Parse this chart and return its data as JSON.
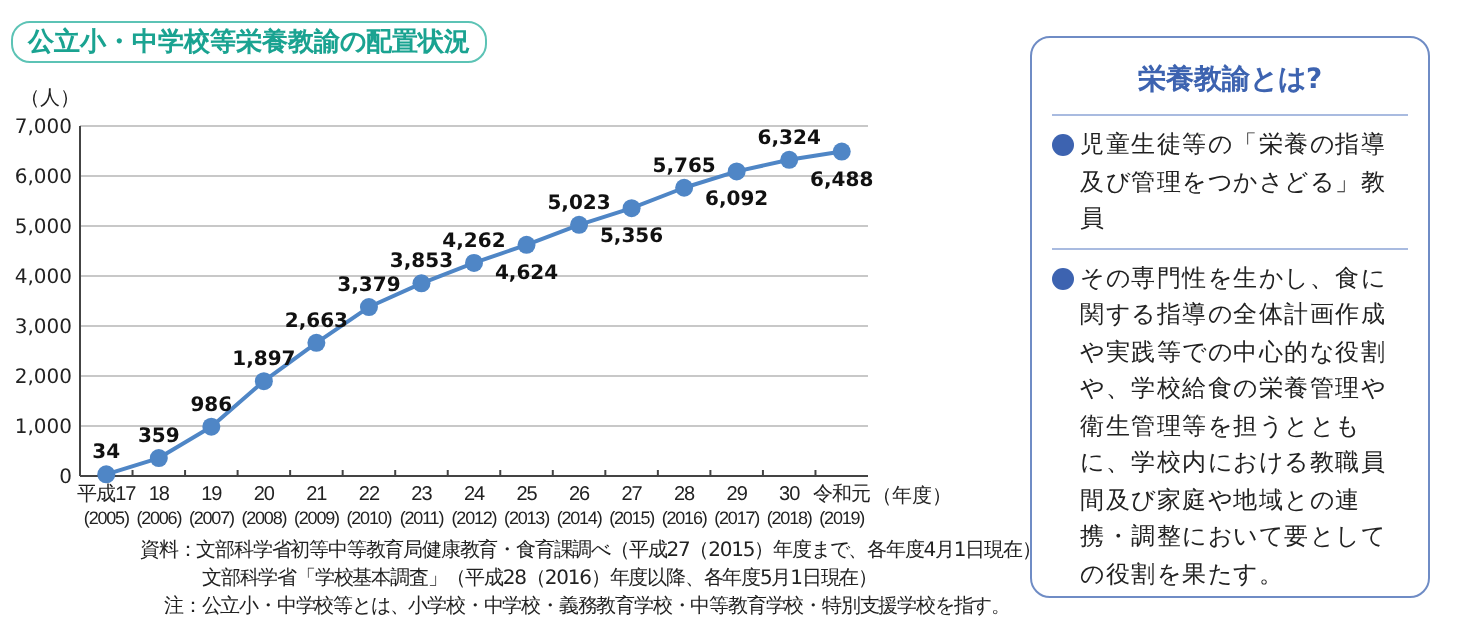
{
  "chart_data": [
    {
      "type": "line",
      "title": "公立小・中学校等栄養教諭の配置状況",
      "ylabel": "（人）",
      "xlabel": "（年度）",
      "categories": [
        "平成17\n(2005)",
        "18\n(2006)",
        "19\n(2007)",
        "20\n(2008)",
        "21\n(2009)",
        "22\n(2010)",
        "23\n(2011)",
        "24\n(2012)",
        "25\n(2013)",
        "26\n(2014)",
        "27\n(2015)",
        "28\n(2016)",
        "29\n(2017)",
        "30\n(2018)",
        "令和元\n(2019)"
      ],
      "series": [
        {
          "color": "#4f86c6",
          "values": [
            34,
            359,
            986,
            1897,
            2663,
            3379,
            3853,
            4262,
            4624,
            5023,
            5356,
            5765,
            6092,
            6324,
            6488
          ],
          "value_labels": [
            "34",
            "359",
            "986",
            "1,897",
            "2,663",
            "3,379",
            "3,853",
            "4,262",
            "4,624",
            "5,023",
            "5,356",
            "5,765",
            "6,092",
            "6,324",
            "6,488"
          ]
        }
      ],
      "ylim": [
        0,
        7000
      ],
      "yticks": [
        0,
        {
          "value": 1000,
          "label": "1,000"
        },
        {
          "value": 2000,
          "label": "2,000"
        },
        {
          "value": 3000,
          "label": "3,000"
        },
        {
          "value": 4000,
          "label": "4,000"
        },
        {
          "value": 5000,
          "label": "5,000"
        },
        {
          "value": 6000,
          "label": "6,000"
        },
        {
          "value": 7000,
          "label": "7,000"
        }
      ],
      "grid": "y",
      "marker": "circle",
      "line_style": "solid",
      "annotations": [
        "資料：文部科学省初等中等教育局健康教育・食育課調べ（平成27（2015）年度まで、各年度4月1日現在）",
        "文部科学省「学校基本調査」（平成28（2016）年度以降、各年度5月1日現在）",
        "注：公立小・中学校等とは、小学校・中学校・義務教育学校・中等教育学校・特別支援学校を指す。"
      ]
    },
    {
      "type": "other",
      "title": "栄養教諭とは?",
      "annotations": [
        "児童生徒等の「栄養の指導及び管理をつかさどる」教員",
        "その専門性を生かし、食に関する指導の全体計画作成や実践等での中心的な役割や、学校給食の栄養管理や衛生管理等を担うとともに、学校内における教職員間及び家庭や地域との連携・調整において要としての役割を果たす。"
      ]
    }
  ]
}
